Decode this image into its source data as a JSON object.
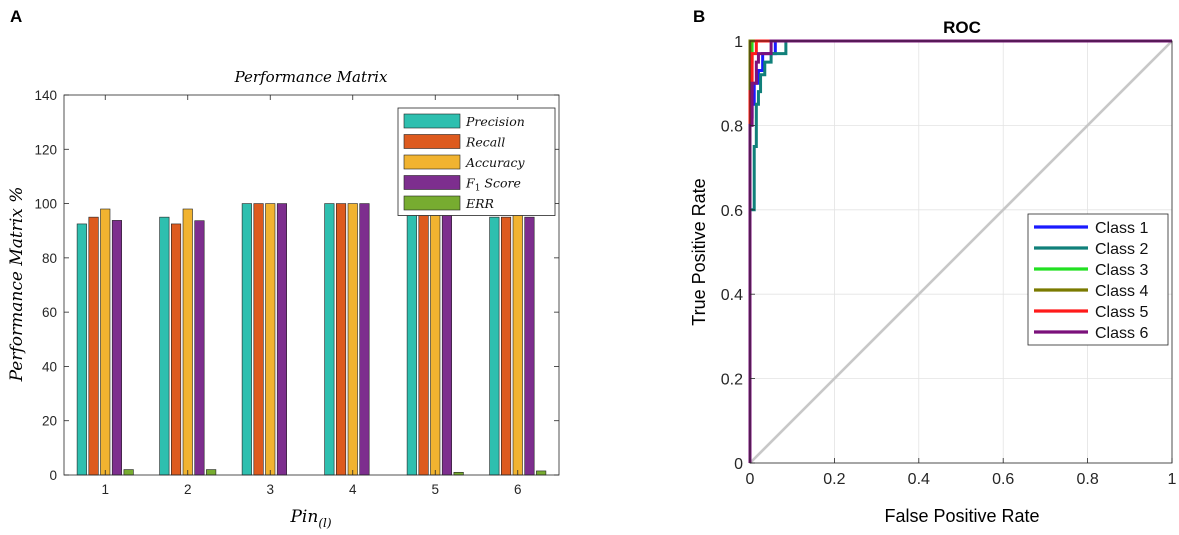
{
  "panels": {
    "a_label": "A",
    "b_label": "B"
  },
  "chart_data": [
    {
      "id": "A",
      "type": "bar",
      "title": "Performance Matrix",
      "xlabel": "Pin(l)",
      "xlabel_main": "Pin",
      "xlabel_sub": "(l)",
      "ylabel": "Performance Matrix %",
      "ylim": [
        0,
        140
      ],
      "yticks": [
        0,
        20,
        40,
        60,
        80,
        100,
        120,
        140
      ],
      "categories": [
        "1",
        "2",
        "3",
        "4",
        "5",
        "6"
      ],
      "legend_position": "top-right",
      "series": [
        {
          "name": "Precision",
          "label_main": "Precision",
          "color": "#2ebfaf",
          "values": [
            92.5,
            95,
            100,
            100,
            97.5,
            95
          ]
        },
        {
          "name": "Recall",
          "label_main": "Recall",
          "color": "#dd5a1e",
          "values": [
            95,
            92.5,
            100,
            100,
            97.5,
            95
          ]
        },
        {
          "name": "Accuracy",
          "label_main": "Accuracy",
          "color": "#f1b330",
          "values": [
            98,
            98,
            100,
            100,
            99,
            98.5
          ]
        },
        {
          "name": "F1 Score",
          "label_main": "F",
          "label_sub": "1",
          "label_tail": " Score",
          "color": "#7d2e8e",
          "values": [
            93.8,
            93.7,
            100,
            100,
            97.5,
            95
          ]
        },
        {
          "name": "ERR",
          "label_main": "ERR",
          "color": "#77ac30",
          "values": [
            2,
            2,
            0,
            0,
            1,
            1.5
          ]
        }
      ]
    },
    {
      "id": "B",
      "type": "line",
      "title": "ROC",
      "xlabel": "False Positive Rate",
      "ylabel": "True Positive Rate",
      "xlim": [
        0,
        1
      ],
      "ylim": [
        0,
        1
      ],
      "xticks": [
        0,
        0.2,
        0.4,
        0.6,
        0.8,
        1
      ],
      "yticks": [
        0,
        0.2,
        0.4,
        0.6,
        0.8,
        1
      ],
      "grid": true,
      "legend_position": "center-right",
      "diagonal": {
        "name": "Chance",
        "color": "#c8c8c8",
        "x": [
          0,
          1
        ],
        "y": [
          0,
          1
        ]
      },
      "series": [
        {
          "name": "Class 1",
          "color": "#1a1aff",
          "x": [
            0,
            0,
            0.005,
            0.005,
            0.01,
            0.01,
            0.02,
            0.02,
            0.03,
            0.03,
            0.06,
            0.06,
            1
          ],
          "y": [
            0,
            0.82,
            0.82,
            0.85,
            0.85,
            0.9,
            0.9,
            0.93,
            0.93,
            0.97,
            0.97,
            1,
            1
          ]
        },
        {
          "name": "Class 2",
          "color": "#10807a",
          "x": [
            0,
            0,
            0.01,
            0.01,
            0.015,
            0.015,
            0.02,
            0.02,
            0.025,
            0.025,
            0.035,
            0.035,
            0.05,
            0.05,
            0.085,
            0.085,
            1
          ],
          "y": [
            0,
            0.6,
            0.6,
            0.75,
            0.75,
            0.85,
            0.85,
            0.88,
            0.88,
            0.92,
            0.92,
            0.95,
            0.95,
            0.97,
            0.97,
            1,
            1
          ]
        },
        {
          "name": "Class 3",
          "color": "#22e022",
          "x": [
            0,
            0,
            0.005,
            0.005,
            1
          ],
          "y": [
            0,
            0.95,
            0.95,
            1,
            1
          ]
        },
        {
          "name": "Class 4",
          "color": "#7a7a00",
          "x": [
            0,
            0,
            1
          ],
          "y": [
            0,
            1,
            1
          ]
        },
        {
          "name": "Class 5",
          "color": "#ff1a1a",
          "x": [
            0,
            0,
            0.005,
            0.005,
            0.015,
            0.015,
            1
          ],
          "y": [
            0,
            0.88,
            0.88,
            0.97,
            0.97,
            1,
            1
          ]
        },
        {
          "name": "Class 6",
          "color": "#7b117b",
          "x": [
            0,
            0,
            0.005,
            0.005,
            0.015,
            0.015,
            0.02,
            0.02,
            0.05,
            0.05,
            1
          ],
          "y": [
            0,
            0.8,
            0.8,
            0.9,
            0.9,
            0.95,
            0.95,
            0.97,
            0.97,
            1,
            1
          ]
        }
      ]
    }
  ]
}
